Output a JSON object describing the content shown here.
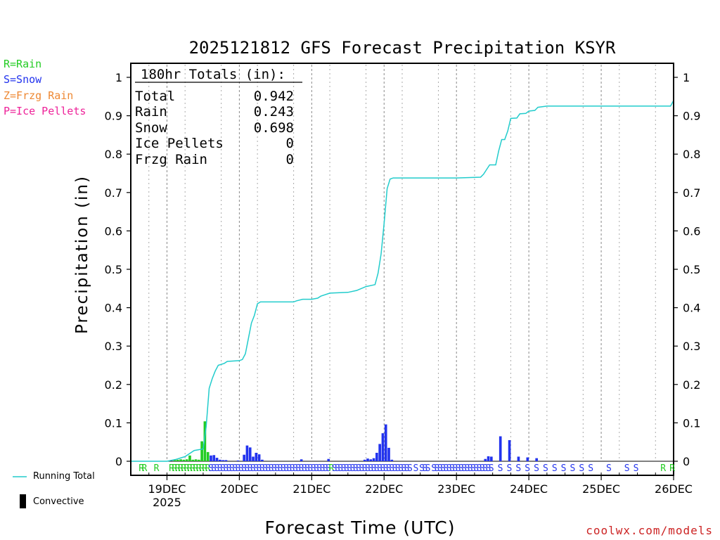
{
  "colors": {
    "rain": "#22cc22",
    "snow": "#2233ee",
    "frzg": "#ee8833",
    "ice": "#ee2299",
    "running_total": "#22cccc",
    "credit": "#cc2222"
  },
  "ptype_legend": [
    {
      "label": "R=Rain",
      "color": "#22cc22"
    },
    {
      "label": "S=Snow",
      "color": "#2233ee"
    },
    {
      "label": "Z=Frzg Rain",
      "color": "#ee8833"
    },
    {
      "label": "P=Ice Pellets",
      "color": "#ee2299"
    }
  ],
  "series_legend": {
    "running_total": "Running Total",
    "convective": "Convective"
  },
  "credit": "coolwx.com/models",
  "chart_data": {
    "type": "bar+line",
    "title": "2025121812 GFS Forecast Precipitation KSYR",
    "xlabel": "Forecast Time (UTC)",
    "ylabel": "Precipitation (in)",
    "x_unit": "forecast hours from 2025121812",
    "xlim": [
      0,
      180
    ],
    "ylim": [
      0,
      1.0
    ],
    "yticks": [
      0,
      0.1,
      0.2,
      0.3,
      0.4,
      0.5,
      0.6,
      0.7,
      0.8,
      0.9,
      1
    ],
    "ytick_labels": [
      "0",
      "0.1",
      "0.2",
      "0.3",
      "0.4",
      "0.5",
      "0.6",
      "0.7",
      "0.8",
      "0.9",
      "1"
    ],
    "xticks": [
      {
        "hour": 12,
        "label": "19DEC",
        "sublabel": "2025"
      },
      {
        "hour": 36,
        "label": "20DEC"
      },
      {
        "hour": 60,
        "label": "21DEC"
      },
      {
        "hour": 84,
        "label": "22DEC"
      },
      {
        "hour": 108,
        "label": "23DEC"
      },
      {
        "hour": 132,
        "label": "24DEC"
      },
      {
        "hour": 156,
        "label": "25DEC"
      },
      {
        "hour": 180,
        "label": "26DEC"
      }
    ],
    "totals_box": {
      "header": "180hr Totals (in):",
      "rows": [
        {
          "label": "Total",
          "value": "0.942"
        },
        {
          "label": "Rain",
          "value": "0.243"
        },
        {
          "label": "Snow",
          "value": "0.698"
        },
        {
          "label": "Ice Pellets",
          "value": "0"
        },
        {
          "label": "Frzg Rain",
          "value": "0"
        }
      ]
    },
    "bars": [
      {
        "hour": 15,
        "value": 0.004,
        "type": "rain"
      },
      {
        "hour": 16,
        "value": 0.004,
        "type": "rain"
      },
      {
        "hour": 17,
        "value": 0.005,
        "type": "rain"
      },
      {
        "hour": 18,
        "value": 0.004,
        "type": "rain"
      },
      {
        "hour": 19,
        "value": 0.005,
        "type": "rain"
      },
      {
        "hour": 20,
        "value": 0.015,
        "type": "rain"
      },
      {
        "hour": 21,
        "value": 0.004,
        "type": "rain"
      },
      {
        "hour": 22,
        "value": 0.005,
        "type": "rain"
      },
      {
        "hour": 23,
        "value": 0.004,
        "type": "rain"
      },
      {
        "hour": 24,
        "value": 0.052,
        "type": "rain"
      },
      {
        "hour": 25,
        "value": 0.104,
        "type": "rain"
      },
      {
        "hour": 26,
        "value": 0.024,
        "type": "rain"
      },
      {
        "hour": 27,
        "value": 0.015,
        "type": "snow"
      },
      {
        "hour": 28,
        "value": 0.016,
        "type": "snow"
      },
      {
        "hour": 29,
        "value": 0.009,
        "type": "snow"
      },
      {
        "hour": 30,
        "value": 0.004,
        "type": "snow"
      },
      {
        "hour": 31,
        "value": 0.003,
        "type": "snow"
      },
      {
        "hour": 32,
        "value": 0.003,
        "type": "snow"
      },
      {
        "hour": 36,
        "value": 0.002,
        "type": "snow"
      },
      {
        "hour": 38,
        "value": 0.017,
        "type": "snow"
      },
      {
        "hour": 39,
        "value": 0.041,
        "type": "snow"
      },
      {
        "hour": 40,
        "value": 0.036,
        "type": "snow"
      },
      {
        "hour": 41,
        "value": 0.012,
        "type": "snow"
      },
      {
        "hour": 42,
        "value": 0.022,
        "type": "snow"
      },
      {
        "hour": 43,
        "value": 0.018,
        "type": "snow"
      },
      {
        "hour": 44,
        "value": 0.004,
        "type": "snow"
      },
      {
        "hour": 57,
        "value": 0.005,
        "type": "snow"
      },
      {
        "hour": 66,
        "value": 0.006,
        "type": "snow"
      },
      {
        "hour": 78,
        "value": 0.004,
        "type": "snow"
      },
      {
        "hour": 79,
        "value": 0.007,
        "type": "snow"
      },
      {
        "hour": 80,
        "value": 0.005,
        "type": "snow"
      },
      {
        "hour": 81,
        "value": 0.008,
        "type": "snow"
      },
      {
        "hour": 82,
        "value": 0.022,
        "type": "snow"
      },
      {
        "hour": 83,
        "value": 0.045,
        "type": "snow"
      },
      {
        "hour": 84,
        "value": 0.073,
        "type": "snow"
      },
      {
        "hour": 85,
        "value": 0.096,
        "type": "snow"
      },
      {
        "hour": 86,
        "value": 0.035,
        "type": "snow"
      },
      {
        "hour": 87,
        "value": 0.004,
        "type": "snow"
      },
      {
        "hour": 118,
        "value": 0.006,
        "type": "snow"
      },
      {
        "hour": 119,
        "value": 0.013,
        "type": "snow"
      },
      {
        "hour": 120,
        "value": 0.012,
        "type": "snow"
      },
      {
        "hour": 123,
        "value": 0.065,
        "type": "snow"
      },
      {
        "hour": 126,
        "value": 0.055,
        "type": "snow"
      },
      {
        "hour": 129,
        "value": 0.012,
        "type": "snow"
      },
      {
        "hour": 132,
        "value": 0.01,
        "type": "snow"
      },
      {
        "hour": 135,
        "value": 0.008,
        "type": "snow"
      }
    ],
    "running_total": [
      [
        0,
        0
      ],
      [
        12,
        0
      ],
      [
        15,
        0.005
      ],
      [
        18,
        0.012
      ],
      [
        21,
        0.028
      ],
      [
        24,
        0.032
      ],
      [
        25,
        0.09
      ],
      [
        26,
        0.19
      ],
      [
        27,
        0.215
      ],
      [
        28,
        0.235
      ],
      [
        29,
        0.25
      ],
      [
        31,
        0.255
      ],
      [
        32,
        0.26
      ],
      [
        36,
        0.262
      ],
      [
        37,
        0.265
      ],
      [
        38,
        0.28
      ],
      [
        39,
        0.32
      ],
      [
        40,
        0.36
      ],
      [
        41,
        0.38
      ],
      [
        42,
        0.41
      ],
      [
        43,
        0.415
      ],
      [
        48,
        0.415
      ],
      [
        54,
        0.415
      ],
      [
        55,
        0.418
      ],
      [
        57,
        0.422
      ],
      [
        60,
        0.422
      ],
      [
        62,
        0.425
      ],
      [
        63,
        0.43
      ],
      [
        66,
        0.438
      ],
      [
        72,
        0.44
      ],
      [
        75,
        0.445
      ],
      [
        78,
        0.455
      ],
      [
        81,
        0.46
      ],
      [
        82,
        0.49
      ],
      [
        83,
        0.54
      ],
      [
        84,
        0.62
      ],
      [
        85,
        0.71
      ],
      [
        86,
        0.735
      ],
      [
        87,
        0.738
      ],
      [
        96,
        0.738
      ],
      [
        108,
        0.738
      ],
      [
        116,
        0.74
      ],
      [
        117,
        0.748
      ],
      [
        118,
        0.76
      ],
      [
        119,
        0.772
      ],
      [
        121,
        0.772
      ],
      [
        122,
        0.808
      ],
      [
        123,
        0.838
      ],
      [
        124,
        0.838
      ],
      [
        125,
        0.86
      ],
      [
        126,
        0.893
      ],
      [
        128,
        0.894
      ],
      [
        129,
        0.905
      ],
      [
        131,
        0.906
      ],
      [
        132,
        0.912
      ],
      [
        134,
        0.914
      ],
      [
        135,
        0.922
      ],
      [
        138,
        0.925
      ],
      [
        150,
        0.925
      ],
      [
        166,
        0.925
      ],
      [
        179,
        0.925
      ],
      [
        180,
        0.94
      ]
    ],
    "ptype_markers": [
      {
        "hour": 4,
        "type": "rain",
        "text": "R"
      },
      {
        "hour": 5,
        "type": "rain",
        "text": "R"
      },
      {
        "hour": 9,
        "type": "rain",
        "text": "R"
      },
      {
        "hour": 14,
        "type": "rain",
        "text": "R"
      },
      {
        "hour": 15,
        "type": "rain",
        "text": "R"
      },
      {
        "hour": 16,
        "type": "rain",
        "text": "R"
      },
      {
        "hour": 17,
        "type": "rain",
        "text": "R"
      },
      {
        "hour": 18,
        "type": "rain",
        "text": "R"
      },
      {
        "hour": 19,
        "type": "rain",
        "text": "R"
      },
      {
        "hour": 20,
        "type": "rain",
        "text": "R"
      },
      {
        "hour": 21,
        "type": "rain",
        "text": "R"
      },
      {
        "hour": 22,
        "type": "rain",
        "text": "R"
      },
      {
        "hour": 23,
        "type": "rain",
        "text": "R"
      },
      {
        "hour": 24,
        "type": "rain",
        "text": "R"
      },
      {
        "hour": 25,
        "type": "rain",
        "text": "R"
      },
      {
        "hour": 26,
        "type": "rain",
        "text": "R"
      },
      {
        "hour": 27,
        "type": "snow",
        "text": "S"
      },
      {
        "hour": 28,
        "type": "snow",
        "text": "S"
      },
      {
        "hour": 29,
        "type": "snow",
        "text": "S"
      },
      {
        "hour": 30,
        "type": "snow",
        "text": "S"
      },
      {
        "hour": 31,
        "type": "snow",
        "text": "S"
      },
      {
        "hour": 32,
        "type": "snow",
        "text": "S"
      },
      {
        "hour": 33,
        "type": "snow",
        "text": "S"
      },
      {
        "hour": 34,
        "type": "snow",
        "text": "S"
      },
      {
        "hour": 35,
        "type": "snow",
        "text": "S"
      },
      {
        "hour": 36,
        "type": "snow",
        "text": "S"
      },
      {
        "hour": 37,
        "type": "snow",
        "text": "S"
      },
      {
        "hour": 38,
        "type": "snow",
        "text": "S"
      },
      {
        "hour": 39,
        "type": "snow",
        "text": "S"
      },
      {
        "hour": 40,
        "type": "snow",
        "text": "S"
      },
      {
        "hour": 41,
        "type": "snow",
        "text": "S"
      },
      {
        "hour": 42,
        "type": "snow",
        "text": "S"
      },
      {
        "hour": 43,
        "type": "snow",
        "text": "S"
      },
      {
        "hour": 44,
        "type": "snow",
        "text": "S"
      },
      {
        "hour": 45,
        "type": "snow",
        "text": "S"
      },
      {
        "hour": 46,
        "type": "snow",
        "text": "S"
      },
      {
        "hour": 47,
        "type": "snow",
        "text": "S"
      },
      {
        "hour": 48,
        "type": "snow",
        "text": "S"
      },
      {
        "hour": 49,
        "type": "snow",
        "text": "S"
      },
      {
        "hour": 50,
        "type": "snow",
        "text": "S"
      },
      {
        "hour": 51,
        "type": "snow",
        "text": "S"
      },
      {
        "hour": 52,
        "type": "snow",
        "text": "S"
      },
      {
        "hour": 53,
        "type": "snow",
        "text": "S"
      },
      {
        "hour": 54,
        "type": "snow",
        "text": "S"
      },
      {
        "hour": 55,
        "type": "snow",
        "text": "S"
      },
      {
        "hour": 56,
        "type": "snow",
        "text": "S"
      },
      {
        "hour": 57,
        "type": "snow",
        "text": "S"
      },
      {
        "hour": 58,
        "type": "snow",
        "text": "S"
      },
      {
        "hour": 59,
        "type": "snow",
        "text": "S"
      },
      {
        "hour": 60,
        "type": "snow",
        "text": "S"
      },
      {
        "hour": 61,
        "type": "snow",
        "text": "S"
      },
      {
        "hour": 62,
        "type": "snow",
        "text": "S"
      },
      {
        "hour": 63,
        "type": "snow",
        "text": "S"
      },
      {
        "hour": 64,
        "type": "snow",
        "text": "S"
      },
      {
        "hour": 65,
        "type": "snow",
        "text": "S"
      },
      {
        "hour": 66,
        "type": "snow",
        "text": "S"
      },
      {
        "hour": 67,
        "type": "rain",
        "text": "R"
      },
      {
        "hour": 68,
        "type": "snow",
        "text": "S"
      },
      {
        "hour": 69,
        "type": "snow",
        "text": "S"
      },
      {
        "hour": 70,
        "type": "snow",
        "text": "S"
      },
      {
        "hour": 71,
        "type": "snow",
        "text": "S"
      },
      {
        "hour": 72,
        "type": "snow",
        "text": "S"
      },
      {
        "hour": 73,
        "type": "snow",
        "text": "S"
      },
      {
        "hour": 74,
        "type": "snow",
        "text": "S"
      },
      {
        "hour": 75,
        "type": "snow",
        "text": "S"
      },
      {
        "hour": 76,
        "type": "snow",
        "text": "S"
      },
      {
        "hour": 77,
        "type": "snow",
        "text": "S"
      },
      {
        "hour": 78,
        "type": "snow",
        "text": "S"
      },
      {
        "hour": 79,
        "type": "snow",
        "text": "S"
      },
      {
        "hour": 80,
        "type": "snow",
        "text": "S"
      },
      {
        "hour": 81,
        "type": "snow",
        "text": "S"
      },
      {
        "hour": 82,
        "type": "snow",
        "text": "S"
      },
      {
        "hour": 83,
        "type": "snow",
        "text": "S"
      },
      {
        "hour": 84,
        "type": "snow",
        "text": "S"
      },
      {
        "hour": 85,
        "type": "snow",
        "text": "S"
      },
      {
        "hour": 86,
        "type": "snow",
        "text": "S"
      },
      {
        "hour": 87,
        "type": "snow",
        "text": "S"
      },
      {
        "hour": 88,
        "type": "snow",
        "text": "S"
      },
      {
        "hour": 89,
        "type": "snow",
        "text": "S"
      },
      {
        "hour": 90,
        "type": "snow",
        "text": "S"
      },
      {
        "hour": 91,
        "type": "snow",
        "text": "S"
      },
      {
        "hour": 92,
        "type": "snow",
        "text": "S"
      },
      {
        "hour": 93,
        "type": "snow",
        "text": "S"
      },
      {
        "hour": 95,
        "type": "snow",
        "text": "S"
      },
      {
        "hour": 97,
        "type": "snow",
        "text": "S"
      },
      {
        "hour": 98,
        "type": "snow",
        "text": "S"
      },
      {
        "hour": 99,
        "type": "snow",
        "text": "S"
      },
      {
        "hour": 101,
        "type": "snow",
        "text": "S"
      },
      {
        "hour": 102,
        "type": "snow",
        "text": "S"
      },
      {
        "hour": 103,
        "type": "snow",
        "text": "S"
      },
      {
        "hour": 104,
        "type": "snow",
        "text": "S"
      },
      {
        "hour": 105,
        "type": "snow",
        "text": "S"
      },
      {
        "hour": 106,
        "type": "snow",
        "text": "S"
      },
      {
        "hour": 107,
        "type": "snow",
        "text": "S"
      },
      {
        "hour": 108,
        "type": "snow",
        "text": "S"
      },
      {
        "hour": 109,
        "type": "snow",
        "text": "S"
      },
      {
        "hour": 110,
        "type": "snow",
        "text": "S"
      },
      {
        "hour": 111,
        "type": "snow",
        "text": "S"
      },
      {
        "hour": 112,
        "type": "snow",
        "text": "S"
      },
      {
        "hour": 113,
        "type": "snow",
        "text": "S"
      },
      {
        "hour": 114,
        "type": "snow",
        "text": "S"
      },
      {
        "hour": 115,
        "type": "snow",
        "text": "S"
      },
      {
        "hour": 116,
        "type": "snow",
        "text": "S"
      },
      {
        "hour": 117,
        "type": "snow",
        "text": "S"
      },
      {
        "hour": 118,
        "type": "snow",
        "text": "S"
      },
      {
        "hour": 119,
        "type": "snow",
        "text": "S"
      },
      {
        "hour": 120,
        "type": "snow",
        "text": "S"
      },
      {
        "hour": 123,
        "type": "snow",
        "text": "S"
      },
      {
        "hour": 126,
        "type": "snow",
        "text": "S"
      },
      {
        "hour": 129,
        "type": "snow",
        "text": "S"
      },
      {
        "hour": 132,
        "type": "snow",
        "text": "S"
      },
      {
        "hour": 135,
        "type": "snow",
        "text": "S"
      },
      {
        "hour": 138,
        "type": "snow",
        "text": "S"
      },
      {
        "hour": 141,
        "type": "snow",
        "text": "S"
      },
      {
        "hour": 144,
        "type": "snow",
        "text": "S"
      },
      {
        "hour": 147,
        "type": "snow",
        "text": "S"
      },
      {
        "hour": 150,
        "type": "snow",
        "text": "S"
      },
      {
        "hour": 153,
        "type": "snow",
        "text": "S"
      },
      {
        "hour": 159,
        "type": "snow",
        "text": "S"
      },
      {
        "hour": 165,
        "type": "snow",
        "text": "S"
      },
      {
        "hour": 168,
        "type": "snow",
        "text": "S"
      },
      {
        "hour": 177,
        "type": "rain",
        "text": "R"
      },
      {
        "hour": 180,
        "type": "rain",
        "text": "R"
      }
    ]
  }
}
